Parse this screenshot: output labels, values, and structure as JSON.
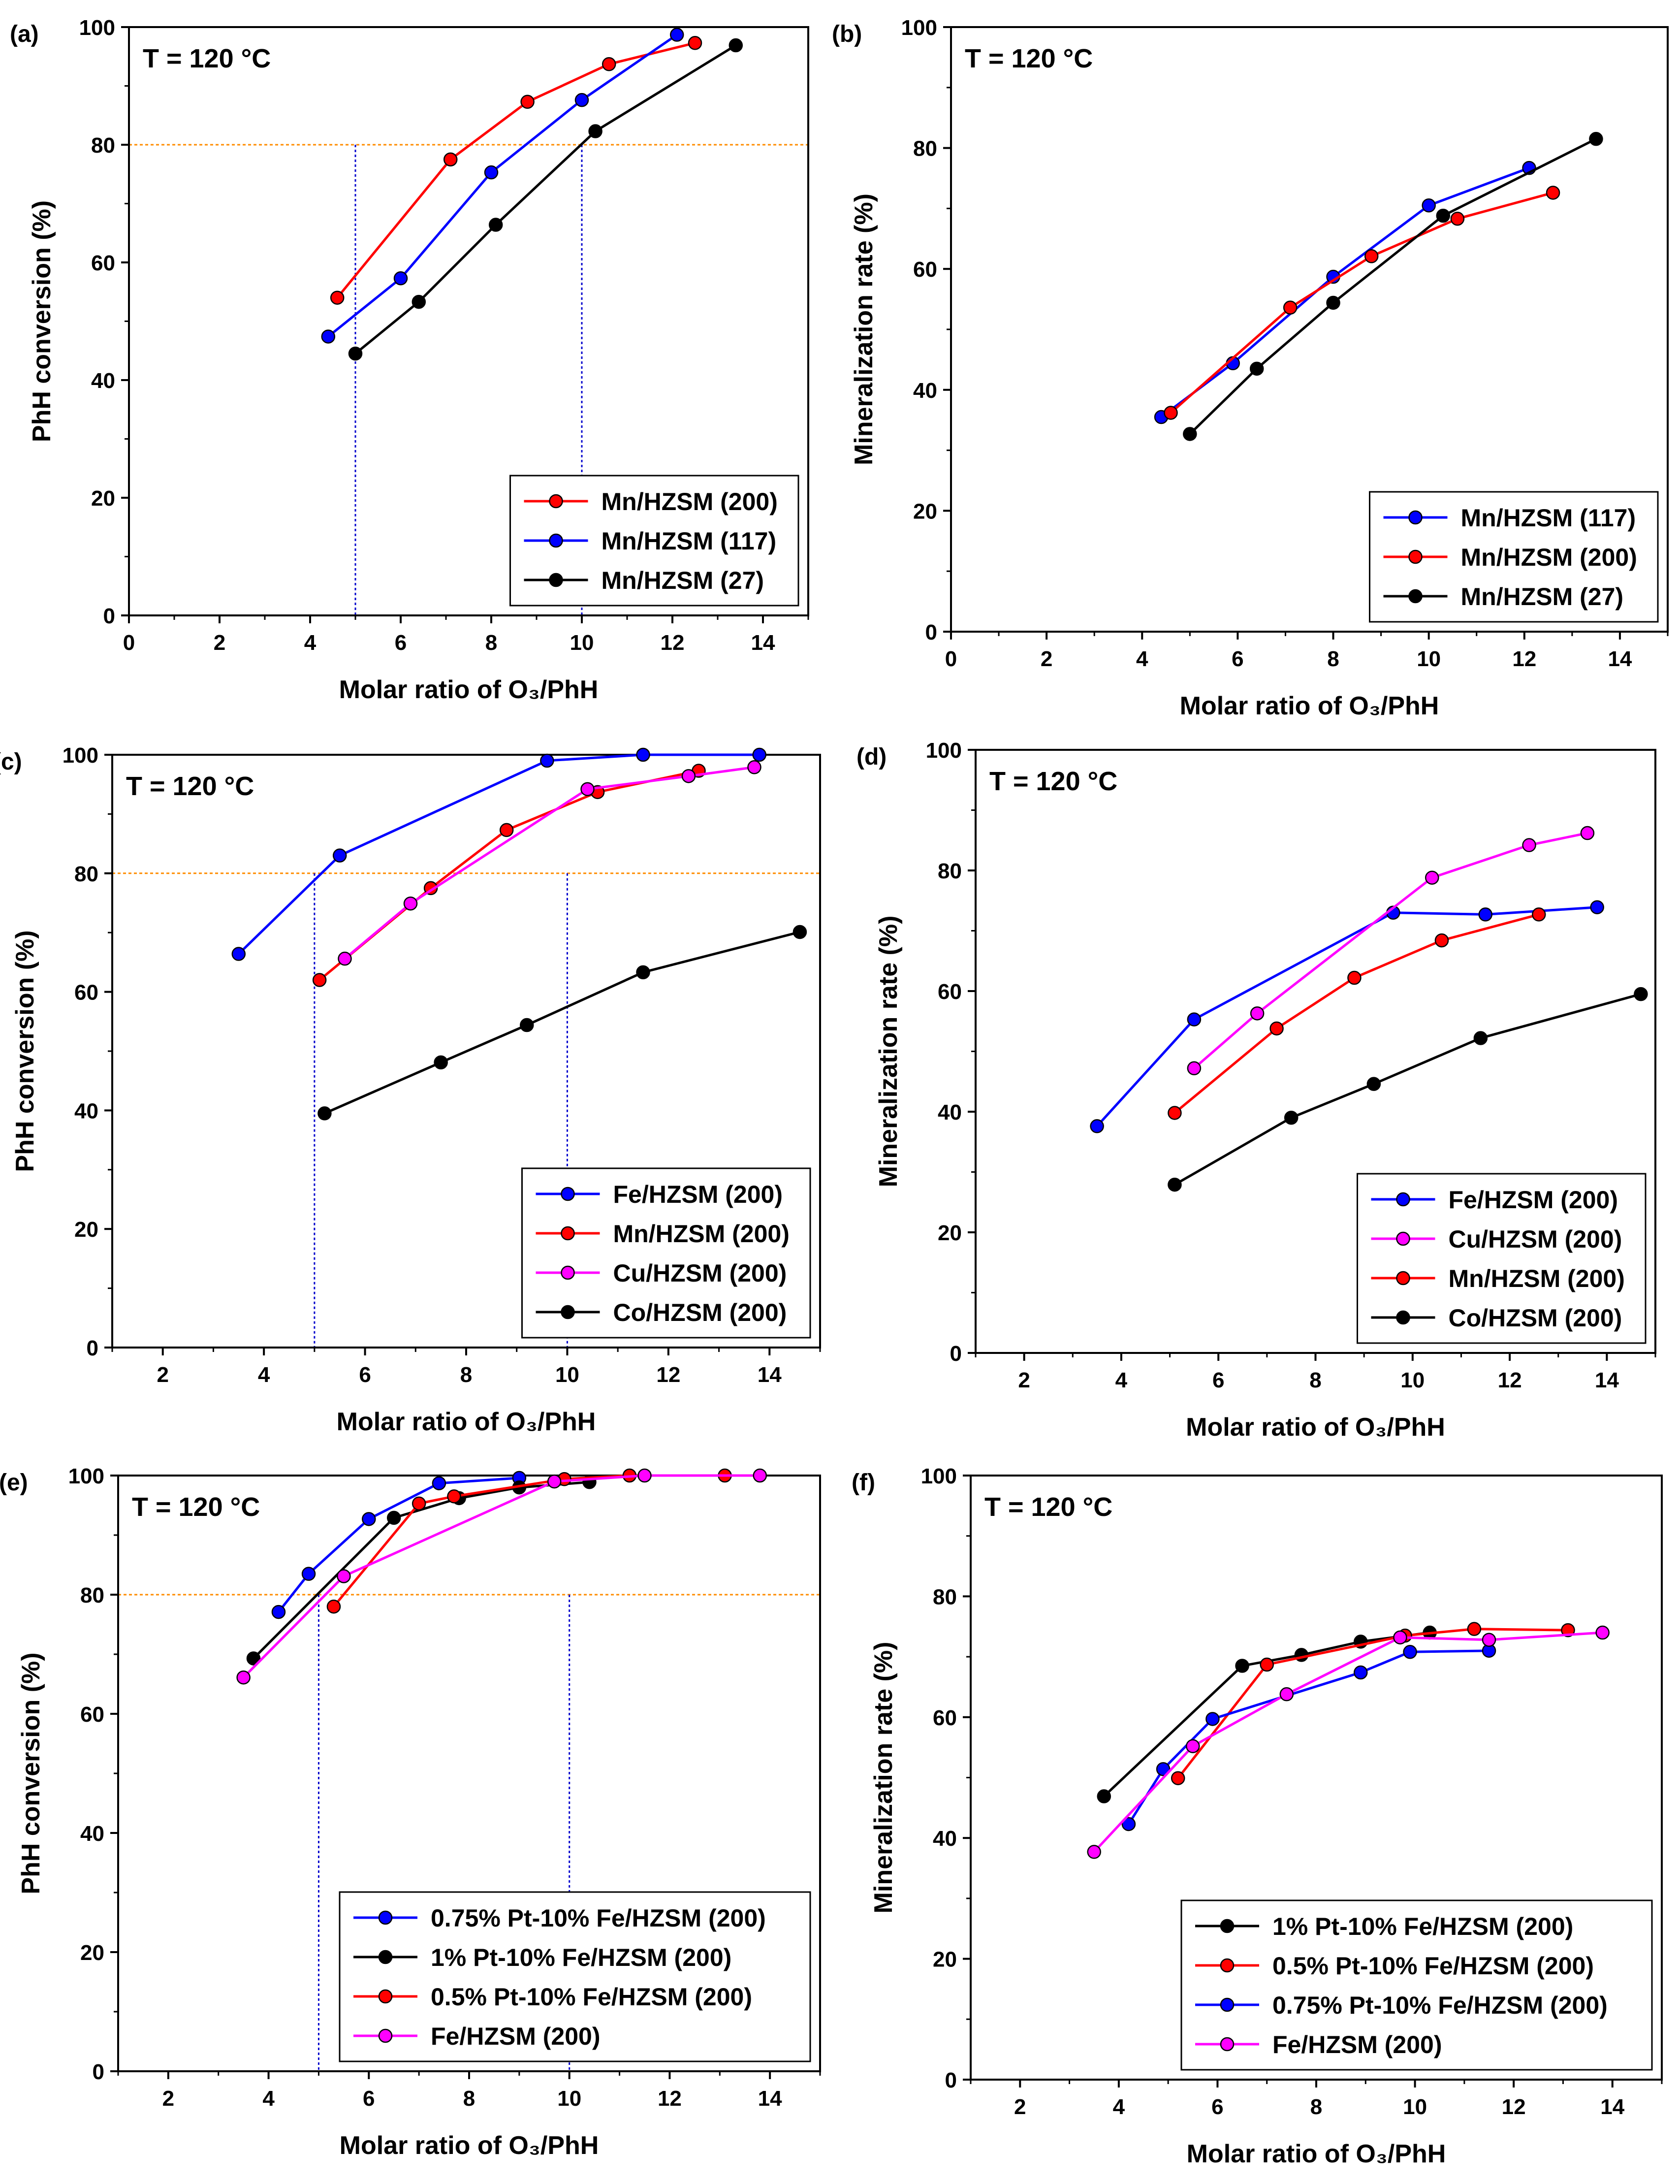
{
  "figure": {
    "colors": {
      "red": "#ff0000",
      "blue": "#0000ff",
      "black": "#000000",
      "magenta": "#ff00ff",
      "orange": "#ff8c00",
      "guide": "#0000cc"
    }
  },
  "chart_data": [
    {
      "type": "line",
      "panel_label": "(a)",
      "title": "T = 120 °C",
      "xlabel": "Molar ratio of O₃/PhH",
      "ylabel": "PhH conversion (%)",
      "xlim": [
        0,
        15
      ],
      "ylim": [
        0,
        100
      ],
      "xticks": [
        0,
        2,
        4,
        6,
        8,
        10,
        12,
        14
      ],
      "yticks": [
        0,
        20,
        40,
        60,
        80,
        100
      ],
      "ref_hline": 80,
      "ref_vlines": [
        5,
        10
      ],
      "legend_position": "bottom-right",
      "series": [
        {
          "name": "Mn/HZSM (200)",
          "color": "#ff0000",
          "x": [
            4.6,
            7.1,
            8.8,
            10.6,
            12.5
          ],
          "y": [
            54,
            77.5,
            87.3,
            93.7,
            97.3
          ]
        },
        {
          "name": "Mn/HZSM (117)",
          "color": "#0000ff",
          "x": [
            4.4,
            6.0,
            8.0,
            10.0,
            12.1
          ],
          "y": [
            47.4,
            57.3,
            75.3,
            87.6,
            98.7
          ]
        },
        {
          "name": "Mn/HZSM (27)",
          "color": "#000000",
          "x": [
            5.0,
            6.4,
            8.1,
            10.3,
            13.4
          ],
          "y": [
            44.5,
            53.3,
            66.4,
            82.3,
            96.9
          ]
        }
      ]
    },
    {
      "type": "line",
      "panel_label": "(b)",
      "title": "T = 120 °C",
      "xlabel": "Molar ratio of O₃/PhH",
      "ylabel": "Mineralization rate (%)",
      "xlim": [
        0,
        15
      ],
      "ylim": [
        0,
        100
      ],
      "xticks": [
        0,
        2,
        4,
        6,
        8,
        10,
        12,
        14
      ],
      "yticks": [
        0,
        20,
        40,
        60,
        80,
        100
      ],
      "legend_position": "bottom-right",
      "series": [
        {
          "name": "Mn/HZSM (117)",
          "color": "#0000ff",
          "x": [
            4.4,
            5.9,
            8.0,
            10.0,
            12.1
          ],
          "y": [
            35.5,
            44.4,
            58.7,
            70.5,
            76.7
          ]
        },
        {
          "name": "Mn/HZSM (200)",
          "color": "#ff0000",
          "x": [
            4.6,
            7.1,
            8.8,
            10.6,
            12.6
          ],
          "y": [
            36.2,
            53.6,
            62.1,
            68.3,
            72.6
          ]
        },
        {
          "name": "Mn/HZSM (27)",
          "color": "#000000",
          "x": [
            5.0,
            6.4,
            8.0,
            10.3,
            13.5
          ],
          "y": [
            32.7,
            43.5,
            54.4,
            68.8,
            81.5
          ]
        }
      ]
    },
    {
      "type": "line",
      "panel_label": "(c)",
      "title": "T = 120 °C",
      "xlabel": "Molar ratio of O₃/PhH",
      "ylabel": "PhH conversion (%)",
      "xlim": [
        1,
        15
      ],
      "ylim": [
        0,
        100
      ],
      "xticks": [
        2,
        4,
        6,
        8,
        10,
        12,
        14
      ],
      "yticks": [
        0,
        20,
        40,
        60,
        80,
        100
      ],
      "ref_hline": 80,
      "ref_vlines": [
        5,
        10
      ],
      "legend_position": "bottom-right",
      "series": [
        {
          "name": "Fe/HZSM (200)",
          "color": "#0000ff",
          "x": [
            3.5,
            5.5,
            9.6,
            11.5,
            13.8
          ],
          "y": [
            66.4,
            83.0,
            99.0,
            100,
            100
          ]
        },
        {
          "name": "Mn/HZSM (200)",
          "color": "#ff0000",
          "x": [
            5.1,
            7.3,
            8.8,
            10.6,
            12.6
          ],
          "y": [
            62.0,
            77.5,
            87.3,
            93.7,
            97.3
          ]
        },
        {
          "name": "Cu/HZSM (200)",
          "color": "#ff00ff",
          "x": [
            5.6,
            6.9,
            10.4,
            12.4,
            13.7
          ],
          "y": [
            65.6,
            74.9,
            94.2,
            96.4,
            97.9
          ]
        },
        {
          "name": "Co/HZSM (200)",
          "color": "#000000",
          "x": [
            5.2,
            7.5,
            9.2,
            11.5,
            14.6
          ],
          "y": [
            39.5,
            48.1,
            54.4,
            63.3,
            70.1
          ]
        }
      ]
    },
    {
      "type": "line",
      "panel_label": "(d)",
      "title": "T = 120 °C",
      "xlabel": "Molar ratio of O₃/PhH",
      "ylabel": "Mineralization rate (%)",
      "xlim": [
        1,
        15
      ],
      "ylim": [
        0,
        100
      ],
      "xticks": [
        2,
        4,
        6,
        8,
        10,
        12,
        14
      ],
      "yticks": [
        0,
        20,
        40,
        60,
        80,
        100
      ],
      "legend_position": "bottom-right",
      "series": [
        {
          "name": "Fe/HZSM (200)",
          "color": "#0000ff",
          "x": [
            3.5,
            5.5,
            9.6,
            11.5,
            13.8
          ],
          "y": [
            37.6,
            55.3,
            73.0,
            72.7,
            73.9
          ]
        },
        {
          "name": "Cu/HZSM (200)",
          "color": "#ff00ff",
          "x": [
            5.5,
            6.8,
            10.4,
            12.4,
            13.6
          ],
          "y": [
            47.2,
            56.3,
            78.8,
            84.2,
            86.2
          ]
        },
        {
          "name": "Mn/HZSM (200)",
          "color": "#ff0000",
          "x": [
            5.1,
            7.2,
            8.8,
            10.6,
            12.6
          ],
          "y": [
            39.8,
            53.8,
            62.2,
            68.4,
            72.7
          ]
        },
        {
          "name": "Co/HZSM (200)",
          "color": "#000000",
          "x": [
            5.1,
            7.5,
            9.2,
            11.4,
            14.7
          ],
          "y": [
            27.9,
            39.0,
            44.6,
            52.2,
            59.5
          ]
        }
      ]
    },
    {
      "type": "line",
      "panel_label": "(e)",
      "title": "T = 120 °C",
      "xlabel": "Molar ratio of O₃/PhH",
      "ylabel": "PhH conversion (%)",
      "xlim": [
        1,
        15
      ],
      "ylim": [
        0,
        100
      ],
      "xticks": [
        2,
        4,
        6,
        8,
        10,
        12,
        14
      ],
      "yticks": [
        0,
        20,
        40,
        60,
        80,
        100
      ],
      "ref_hline": 80,
      "ref_vlines": [
        5,
        10
      ],
      "legend_position": "bottom-right",
      "series": [
        {
          "name": "0.75% Pt-10% Fe/HZSM (200)",
          "color": "#0000ff",
          "x": [
            4.2,
            4.8,
            6.0,
            7.4,
            9.0
          ],
          "y": [
            77.1,
            83.5,
            92.7,
            98.7,
            99.6
          ]
        },
        {
          "name": "1% Pt-10% Fe/HZSM (200)",
          "color": "#000000",
          "x": [
            3.7,
            6.5,
            7.8,
            9.0,
            10.4
          ],
          "y": [
            69.3,
            92.9,
            96.2,
            98.0,
            98.9
          ]
        },
        {
          "name": "0.5% Pt-10% Fe/HZSM (200)",
          "color": "#ff0000",
          "x": [
            5.3,
            7.0,
            7.7,
            9.9,
            11.2,
            13.1
          ],
          "y": [
            78.0,
            95.3,
            96.5,
            99.4,
            100,
            100
          ]
        },
        {
          "name": "Fe/HZSM (200)",
          "color": "#ff00ff",
          "x": [
            3.5,
            5.5,
            9.7,
            11.5,
            13.8
          ],
          "y": [
            66.1,
            83.1,
            99.0,
            100,
            100
          ]
        }
      ]
    },
    {
      "type": "line",
      "panel_label": "(f)",
      "title": "T = 120 °C",
      "xlabel": "Molar ratio of O₃/PhH",
      "ylabel": "Mineralization rate (%)",
      "xlim": [
        1,
        15
      ],
      "ylim": [
        0,
        100
      ],
      "xticks": [
        2,
        4,
        6,
        8,
        10,
        12,
        14
      ],
      "yticks": [
        0,
        20,
        40,
        60,
        80,
        100
      ],
      "legend_position": "bottom-right",
      "series": [
        {
          "name": "1% Pt-10% Fe/HZSM (200)",
          "color": "#000000",
          "x": [
            3.7,
            6.5,
            7.7,
            8.9,
            10.3
          ],
          "y": [
            46.9,
            68.5,
            70.3,
            72.5,
            74.0
          ]
        },
        {
          "name": "0.5% Pt-10% Fe/HZSM (200)",
          "color": "#ff0000",
          "x": [
            5.2,
            7.0,
            9.8,
            11.2,
            13.1
          ],
          "y": [
            49.9,
            68.7,
            73.5,
            74.6,
            74.4
          ]
        },
        {
          "name": "0.75% Pt-10% Fe/HZSM (200)",
          "color": "#0000ff",
          "x": [
            4.2,
            4.9,
            5.9,
            8.9,
            9.9,
            11.5
          ],
          "y": [
            42.3,
            51.4,
            59.7,
            67.4,
            70.8,
            71.0
          ]
        },
        {
          "name": "Fe/HZSM (200)",
          "color": "#ff00ff",
          "x": [
            3.5,
            5.5,
            7.4,
            9.7,
            11.5,
            13.8
          ],
          "y": [
            37.7,
            55.2,
            63.8,
            73.2,
            72.8,
            74.0
          ]
        }
      ]
    }
  ]
}
